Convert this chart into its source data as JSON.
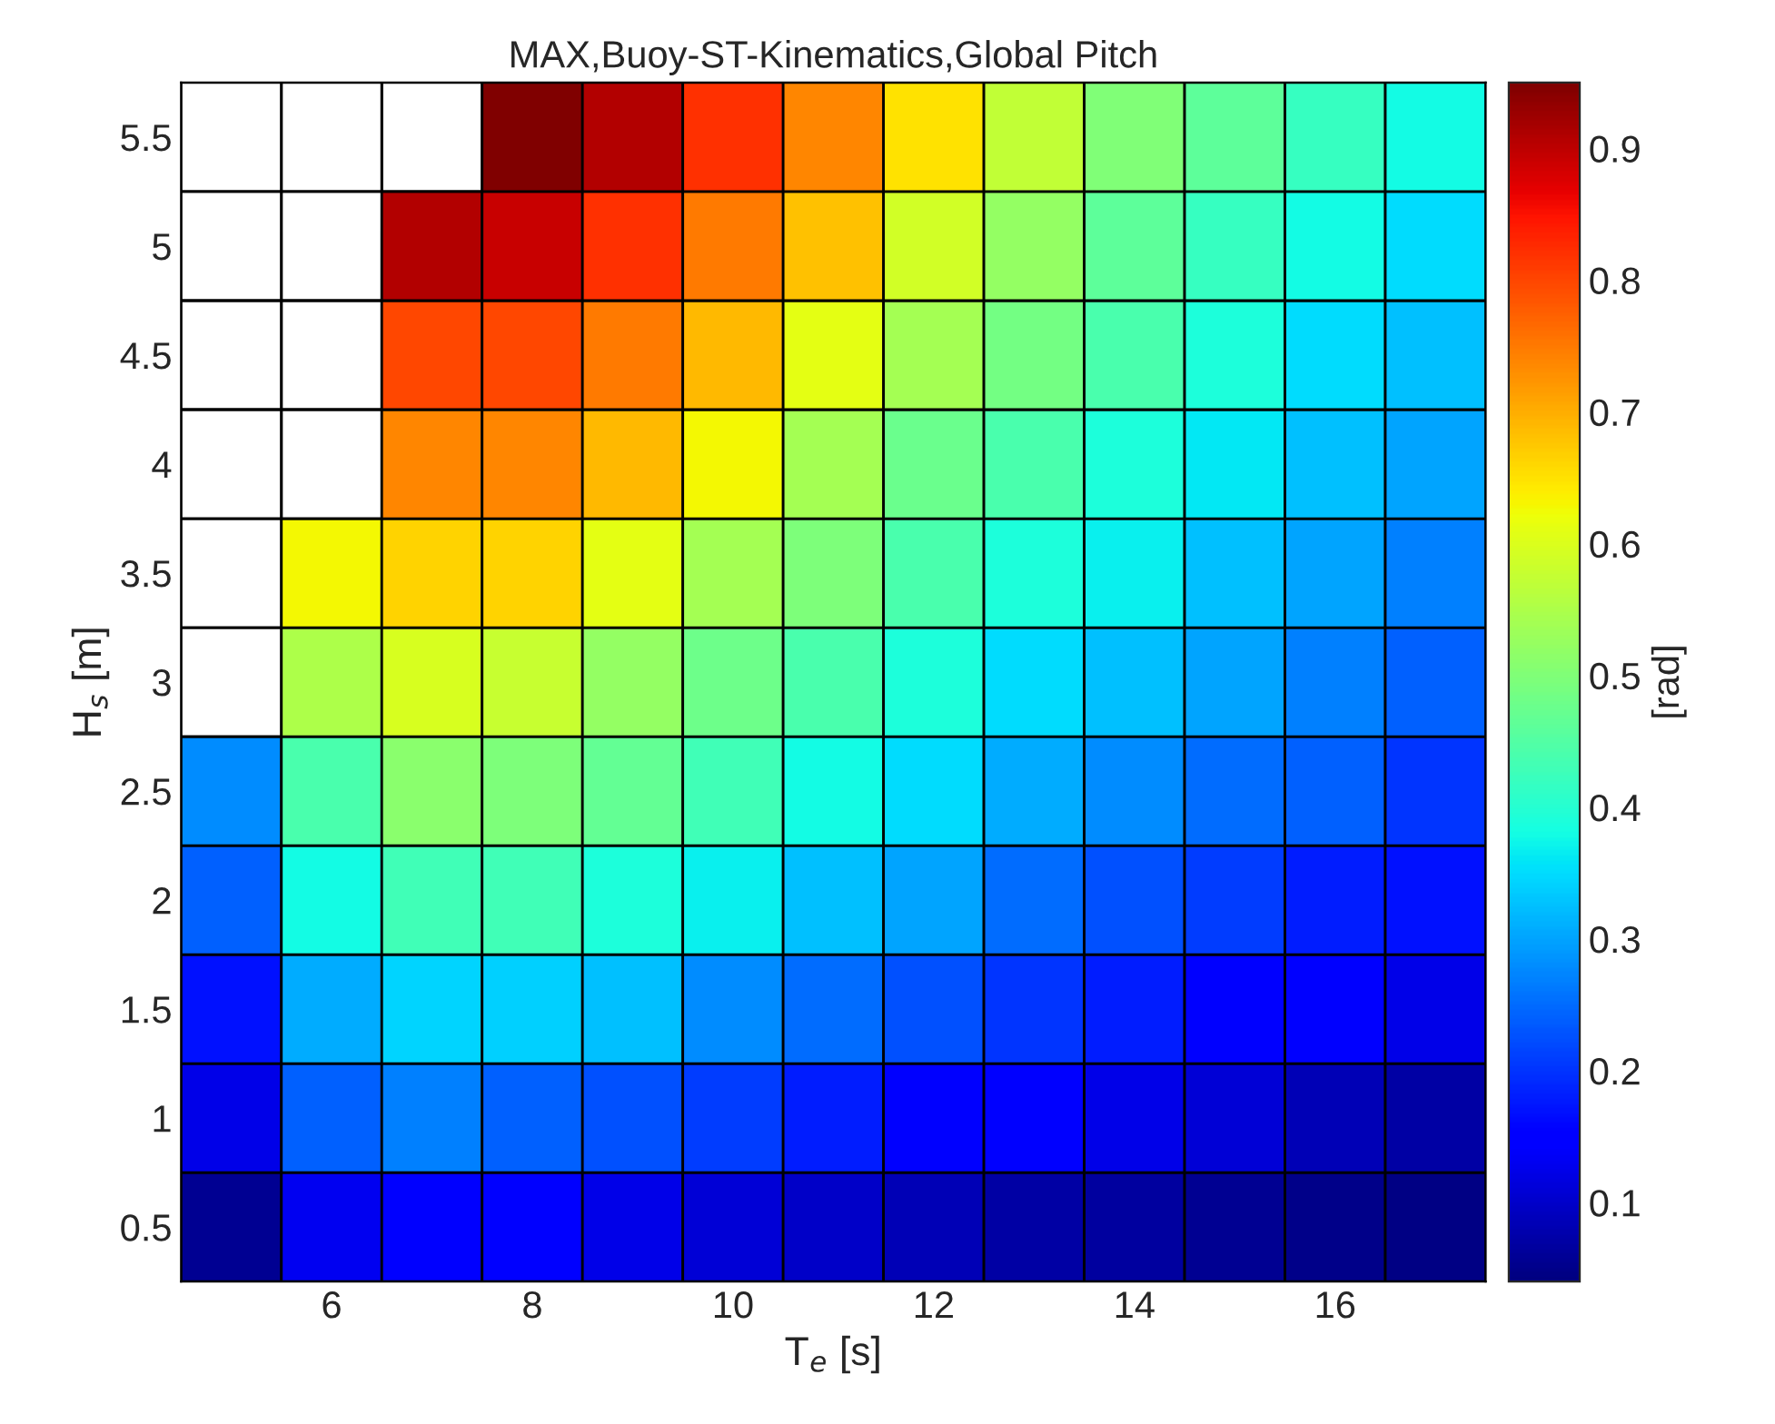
{
  "chart_data": {
    "type": "heatmap",
    "title": "MAX,Buoy-ST-Kinematics,Global Pitch",
    "xlabel": "T$_{e}$ [s]",
    "ylabel": "H$_{s}$ [m]",
    "clabel": "[rad]",
    "categories": [
      null,
      "6",
      null,
      "8",
      null,
      "10",
      null,
      "12",
      null,
      "14",
      null,
      "16",
      null
    ],
    "y_categories": [
      "5.5",
      "5",
      "4.5",
      "4",
      "3.5",
      "3",
      "2.5",
      "2",
      "1.5",
      "1",
      "0.5"
    ],
    "cells": [
      [
        null,
        null,
        null,
        0.95,
        0.91,
        0.82,
        0.74,
        0.65,
        0.57,
        0.5,
        0.46,
        0.42,
        0.38
      ],
      [
        null,
        null,
        0.91,
        0.89,
        0.82,
        0.75,
        0.68,
        0.59,
        0.52,
        0.46,
        0.42,
        0.38,
        0.35
      ],
      [
        null,
        null,
        0.8,
        0.8,
        0.75,
        0.69,
        0.61,
        0.54,
        0.485,
        0.44,
        0.39,
        0.35,
        0.325
      ],
      [
        null,
        null,
        0.74,
        0.74,
        0.69,
        0.63,
        0.54,
        0.475,
        0.44,
        0.39,
        0.36,
        0.325,
        0.3
      ],
      [
        null,
        0.63,
        0.665,
        0.665,
        0.61,
        0.54,
        0.495,
        0.44,
        0.39,
        0.37,
        0.325,
        0.3,
        0.27
      ],
      [
        null,
        0.55,
        0.595,
        0.58,
        0.52,
        0.48,
        0.44,
        0.39,
        0.35,
        0.325,
        0.3,
        0.27,
        0.24
      ],
      [
        0.28,
        0.44,
        0.51,
        0.495,
        0.47,
        0.43,
        0.38,
        0.35,
        0.31,
        0.28,
        0.25,
        0.24,
        0.2
      ],
      [
        0.24,
        0.38,
        0.43,
        0.43,
        0.39,
        0.37,
        0.325,
        0.3,
        0.25,
        0.225,
        0.21,
        0.18,
        0.17
      ],
      [
        0.17,
        0.31,
        0.345,
        0.34,
        0.325,
        0.28,
        0.25,
        0.225,
        0.2,
        0.18,
        0.154,
        0.14,
        0.125
      ],
      [
        0.125,
        0.24,
        0.27,
        0.24,
        0.225,
        0.21,
        0.18,
        0.154,
        0.14,
        0.125,
        0.11,
        0.083,
        0.07
      ],
      [
        0.055,
        0.13,
        0.14,
        0.14,
        0.125,
        0.11,
        0.097,
        0.083,
        0.07,
        0.065,
        0.055,
        0.05,
        0.045
      ]
    ],
    "clim": [
      0.04,
      0.95
    ],
    "cticks": [
      0.1,
      0.2,
      0.3,
      0.4,
      0.5,
      0.6,
      0.7,
      0.8,
      0.9
    ]
  }
}
